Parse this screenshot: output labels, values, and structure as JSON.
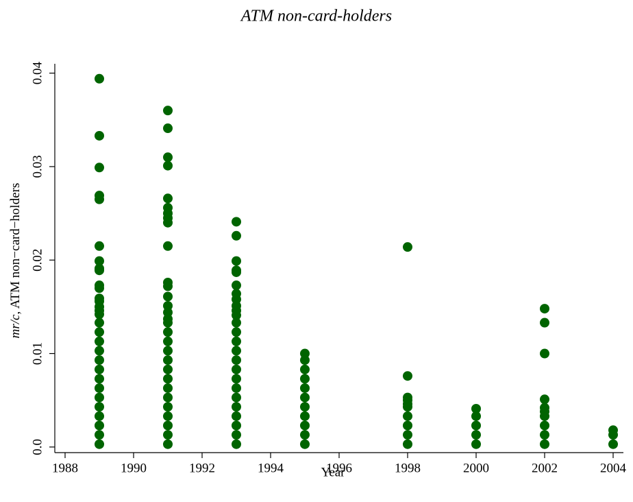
{
  "chart_data": {
    "type": "scatter",
    "title": "ATM non-card-holders",
    "xlabel": "Year",
    "ylabel": [
      "mr/c",
      ", ATM non−card−holders"
    ],
    "color": "#006400",
    "xlim": [
      1987.7,
      2004.3
    ],
    "ylim": [
      -0.0006,
      0.041
    ],
    "xticks": [
      1988,
      1990,
      1992,
      1994,
      1996,
      1998,
      2000,
      2002,
      2004
    ],
    "yticks": [
      {
        "value": 0,
        "label": "0.0"
      },
      0.01,
      0.02,
      0.03,
      0.04
    ],
    "grid": false,
    "x": [
      1989,
      1989,
      1989,
      1989,
      1989,
      1989,
      1989,
      1989,
      1989,
      1989,
      1989,
      1989,
      1989,
      1989,
      1989,
      1989,
      1989,
      1989,
      1989,
      1989,
      1989,
      1989,
      1989,
      1989,
      1989,
      1989,
      1989,
      1989,
      1989,
      1989,
      1991,
      1991,
      1991,
      1991,
      1991,
      1991,
      1991,
      1991,
      1991,
      1991,
      1991,
      1991,
      1991,
      1991,
      1991,
      1991,
      1991,
      1991,
      1991,
      1991,
      1991,
      1991,
      1991,
      1991,
      1991,
      1991,
      1991,
      1991,
      1991,
      1991,
      1993,
      1993,
      1993,
      1993,
      1993,
      1993,
      1993,
      1993,
      1993,
      1993,
      1993,
      1993,
      1993,
      1993,
      1993,
      1993,
      1993,
      1993,
      1993,
      1993,
      1993,
      1993,
      1993,
      1993,
      1993,
      1995,
      1995,
      1995,
      1995,
      1995,
      1995,
      1995,
      1995,
      1995,
      1995,
      1995,
      1998,
      1998,
      1998,
      1998,
      1998,
      1998,
      1998,
      1998,
      1998,
      1998,
      2000,
      2000,
      2000,
      2000,
      2000,
      2002,
      2002,
      2002,
      2002,
      2002,
      2002,
      2002,
      2002,
      2002,
      2002,
      2004,
      2004,
      2004
    ],
    "y": [
      0.0394,
      0.0333,
      0.0299,
      0.0269,
      0.0265,
      0.0215,
      0.0199,
      0.0191,
      0.0189,
      0.0173,
      0.017,
      0.0159,
      0.0156,
      0.015,
      0.0146,
      0.0142,
      0.0003,
      0.0013,
      0.0023,
      0.0033,
      0.0043,
      0.0053,
      0.0063,
      0.0073,
      0.0083,
      0.0093,
      0.0103,
      0.0113,
      0.0123,
      0.0133,
      0.036,
      0.0341,
      0.031,
      0.0301,
      0.0266,
      0.0256,
      0.025,
      0.0245,
      0.024,
      0.0215,
      0.0176,
      0.0172,
      0.0161,
      0.0151,
      0.0144,
      0.0137,
      0.0003,
      0.0013,
      0.0023,
      0.0033,
      0.0043,
      0.0053,
      0.0063,
      0.0073,
      0.0083,
      0.0093,
      0.0103,
      0.0113,
      0.0123,
      0.0133,
      0.0241,
      0.0226,
      0.0199,
      0.0189,
      0.0187,
      0.0173,
      0.0164,
      0.0158,
      0.0151,
      0.0146,
      0.0141,
      0.0003,
      0.0013,
      0.0023,
      0.0033,
      0.0043,
      0.0053,
      0.0063,
      0.0073,
      0.0083,
      0.0093,
      0.0103,
      0.0113,
      0.0123,
      0.0133,
      0.0003,
      0.0013,
      0.0023,
      0.0033,
      0.0043,
      0.0053,
      0.0063,
      0.0073,
      0.0083,
      0.0093,
      0.01,
      0.0214,
      0.0076,
      0.0053,
      0.005,
      0.0046,
      0.0003,
      0.0013,
      0.0023,
      0.0033,
      0.0043,
      0.0041,
      0.0003,
      0.0013,
      0.0023,
      0.0033,
      0.0148,
      0.0133,
      0.01,
      0.0051,
      0.0042,
      0.0038,
      0.0003,
      0.0013,
      0.0023,
      0.0033,
      0.0018,
      0.0013,
      0.0003
    ]
  }
}
